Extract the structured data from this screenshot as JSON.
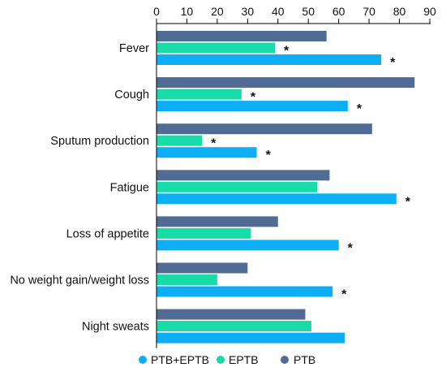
{
  "chart_data": {
    "type": "bar",
    "orientation": "horizontal",
    "title": "",
    "xlabel": "",
    "ylabel": "",
    "xlim": [
      0,
      90
    ],
    "x_ticks": [
      0,
      10,
      20,
      30,
      40,
      50,
      60,
      70,
      80,
      90
    ],
    "x_axis_position": "top",
    "grid": false,
    "legend_position": "bottom",
    "categories": [
      "Fever",
      "Cough",
      "Sputum production",
      "Fatigue",
      "Loss of appetite",
      "No weight gain/weight loss",
      "Night sweats"
    ],
    "series": [
      {
        "name": "PTB",
        "color": "#506C94",
        "values": [
          56,
          85,
          71,
          57,
          40,
          30,
          49
        ],
        "significant": [
          false,
          false,
          false,
          false,
          false,
          false,
          false
        ]
      },
      {
        "name": "EPTB",
        "color": "#18DBA8",
        "values": [
          39,
          28,
          15,
          53,
          31,
          20,
          51
        ],
        "significant": [
          true,
          true,
          true,
          false,
          false,
          false,
          false
        ]
      },
      {
        "name": "PTB+EPTB",
        "color": "#0CAEF5",
        "values": [
          74,
          63,
          33,
          79,
          60,
          58,
          62
        ],
        "significant": [
          true,
          true,
          true,
          true,
          true,
          true,
          false
        ]
      }
    ],
    "significance_marker": "*",
    "legend_order": [
      "PTB+EPTB",
      "EPTB",
      "PTB"
    ]
  }
}
